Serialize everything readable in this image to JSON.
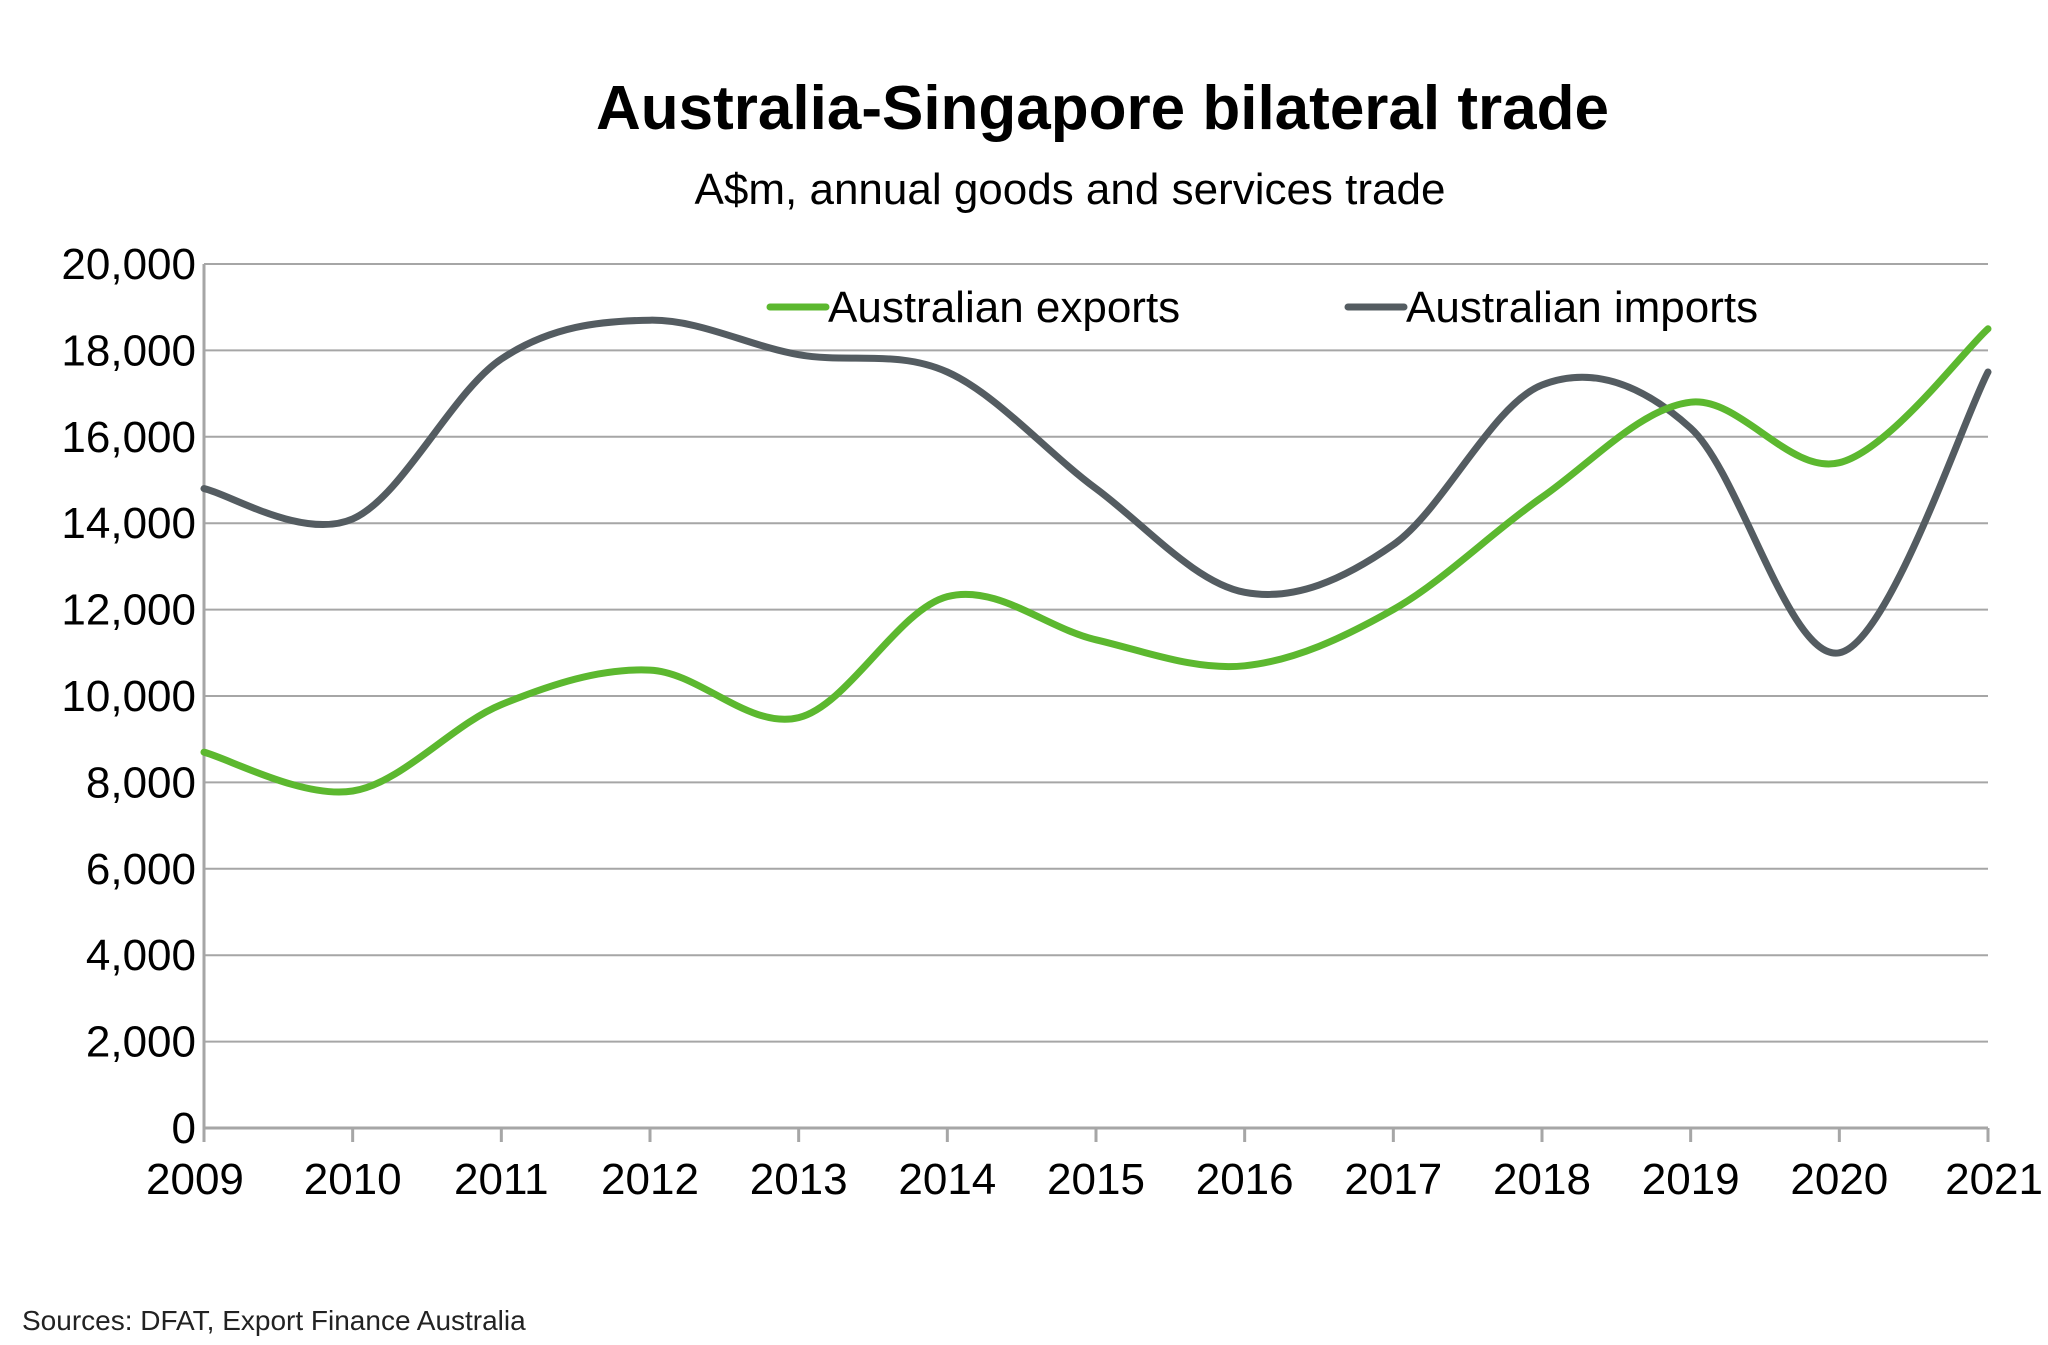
{
  "colors": {
    "exports": "#5cb82f",
    "imports": "#545c61",
    "grid": "#a6a6a6",
    "axis": "#a6a6a6"
  },
  "chart_data": {
    "type": "line",
    "title": "Australia-Singapore bilateral trade",
    "subtitle": "A$m, annual goods and services trade",
    "x": [
      "2009",
      "2010",
      "2011",
      "2012",
      "2013",
      "2014",
      "2015",
      "2016",
      "2017",
      "2018",
      "2019",
      "2020",
      "2021"
    ],
    "ylim": [
      0,
      20000
    ],
    "yticks": [
      "0",
      "2,000",
      "4,000",
      "6,000",
      "8,000",
      "10,000",
      "12,000",
      "14,000",
      "16,000",
      "18,000",
      "20,000"
    ],
    "grid": true,
    "legend_position": "top",
    "series": [
      {
        "name": "Australian exports",
        "color_key": "exports",
        "values": [
          8700,
          7800,
          9800,
          10600,
          9500,
          12300,
          11300,
          10700,
          12000,
          14600,
          16800,
          15400,
          18500
        ]
      },
      {
        "name": "Australian imports",
        "color_key": "imports",
        "values": [
          14800,
          14100,
          17800,
          18700,
          17900,
          17500,
          14800,
          12400,
          13500,
          17200,
          16200,
          11000,
          17500
        ]
      }
    ]
  },
  "footer": {
    "source": "Sources: DFAT, Export Finance Australia"
  }
}
